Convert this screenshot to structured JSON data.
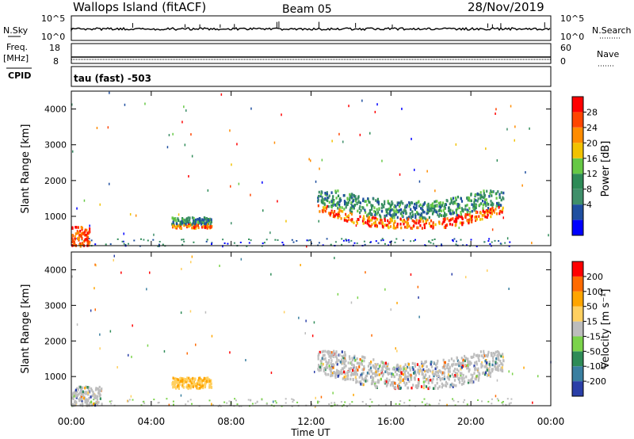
{
  "header": {
    "site": "Wallops Island (fitACF)",
    "beam": "Beam 05",
    "date": "28/Nov/2019"
  },
  "strips": {
    "nsky_label": "N.Sky",
    "nsky_ticks": [
      "10^5",
      "10^0"
    ],
    "nsearch_label": "N.Search",
    "nsearch_ticks": [
      "10^5",
      "10^0"
    ],
    "freq_label": "Freq.",
    "freq_unit": "[MHz]",
    "freq_ticks": [
      "18",
      "8"
    ],
    "nave_label": "Nave",
    "nave_ticks": [
      "60",
      "0"
    ],
    "cpid_label": "CPID",
    "cpid_value": "tau (fast) -503"
  },
  "chart_data": [
    {
      "type": "heatmap",
      "name": "power",
      "ylabel": "Slant Range [km]",
      "y_ticks": [
        "4000",
        "3000",
        "2000",
        "1000"
      ],
      "y_tick_values": [
        4000,
        3000,
        2000,
        1000
      ],
      "ylim": [
        180,
        4500
      ],
      "xlim": [
        0,
        24
      ],
      "colorbar_label": "Power [dB]",
      "colorbar_ticks": [
        "28",
        "24",
        "20",
        "16",
        "12",
        "8",
        "4"
      ],
      "colorbar_colors": [
        "#0000ff",
        "#1f4fa0",
        "#3f8f6a",
        "#2e8b57",
        "#66c845",
        "#f2c200",
        "#ff8c00",
        "#ff4500",
        "#ff0000"
      ],
      "echo_regions": [
        {
          "t_start": 0.0,
          "t_end": 0.9,
          "r_start": 200,
          "r_end": 750,
          "level": "high"
        },
        {
          "t_start": 5.0,
          "t_end": 7.0,
          "r_start": 700,
          "r_end": 1000,
          "level": "medium"
        },
        {
          "t_start": 12.3,
          "t_end": 21.6,
          "r_start": 700,
          "r_end": 1650,
          "level": "medium-high"
        }
      ]
    },
    {
      "type": "heatmap",
      "name": "velocity",
      "ylabel": "Slant Range [km]",
      "y_ticks": [
        "4000",
        "3000",
        "2000",
        "1000"
      ],
      "y_tick_values": [
        4000,
        3000,
        2000,
        1000
      ],
      "ylim": [
        180,
        4500
      ],
      "xlim": [
        0,
        24
      ],
      "colorbar_label": "Velocity [m s⁻¹]",
      "colorbar_ticks": [
        "200",
        "100",
        "50",
        "15",
        "-15",
        "-50",
        "-100",
        "-200"
      ],
      "colorbar_colors": [
        "#2a3fa8",
        "#3a7fa0",
        "#2e8b57",
        "#7bd34b",
        "#bdbdbd",
        "#ffd060",
        "#ffa500",
        "#ff6a00",
        "#ff0000"
      ],
      "echo_regions": [
        {
          "t_start": 0.0,
          "t_end": 1.5,
          "r_start": 200,
          "r_end": 750,
          "level": "gray"
        },
        {
          "t_start": 5.0,
          "t_end": 7.0,
          "r_start": 700,
          "r_end": 1000,
          "level": "yellow"
        },
        {
          "t_start": 12.3,
          "t_end": 21.6,
          "r_start": 700,
          "r_end": 1650,
          "level": "gray"
        }
      ]
    }
  ],
  "x_axis": {
    "ticks": [
      "00:00",
      "04:00",
      "08:00",
      "12:00",
      "16:00",
      "20:00",
      "00:00"
    ],
    "tick_values": [
      0,
      4,
      8,
      12,
      16,
      20,
      24
    ],
    "label": "Time UT"
  }
}
